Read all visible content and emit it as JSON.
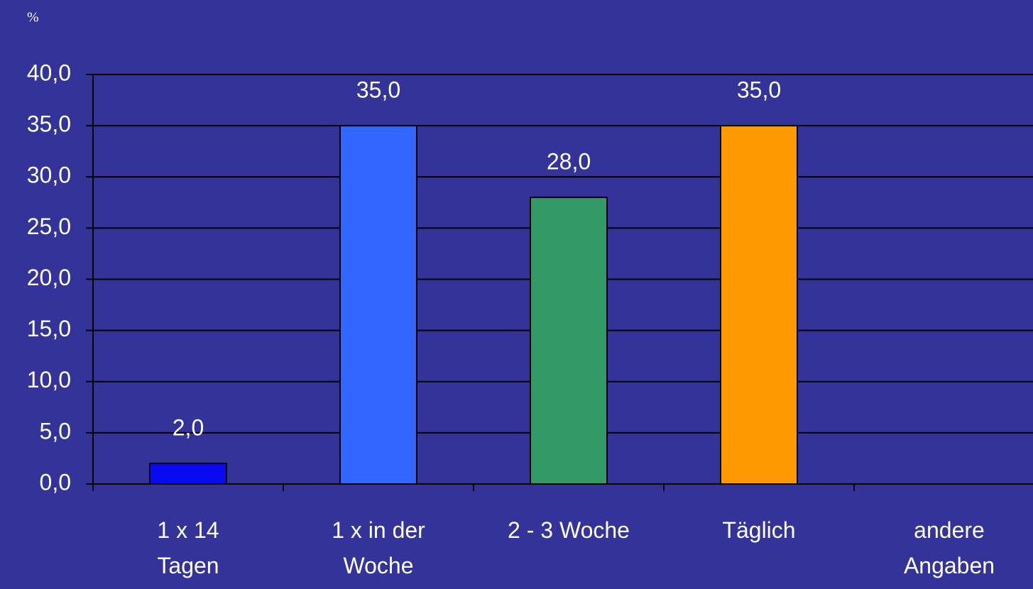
{
  "chart_data": {
    "type": "bar",
    "y_label": "%",
    "categories": [
      "1 x 14\nTagen",
      "1 x in der\nWoche",
      "2 - 3 Woche",
      "Täglich",
      "andere\nAngaben"
    ],
    "values": [
      2,
      35,
      28,
      35,
      null
    ],
    "value_labels": [
      "2,0",
      "35,0",
      "28,0",
      "35,0",
      null
    ],
    "colors": [
      "#0a0af0",
      "#3366ff",
      "#339966",
      "#ff9900",
      null
    ],
    "ylim": [
      0,
      40
    ],
    "yticks": [
      {
        "value": 0,
        "label": "0,0"
      },
      {
        "value": 5,
        "label": "5,0"
      },
      {
        "value": 10,
        "label": "10,0"
      },
      {
        "value": 15,
        "label": "15,0"
      },
      {
        "value": 20,
        "label": "20,0"
      },
      {
        "value": 25,
        "label": "25,0"
      },
      {
        "value": 30,
        "label": "30,0"
      },
      {
        "value": 35,
        "label": "35,0"
      },
      {
        "value": 40,
        "label": "40,0"
      }
    ],
    "grid": true
  }
}
